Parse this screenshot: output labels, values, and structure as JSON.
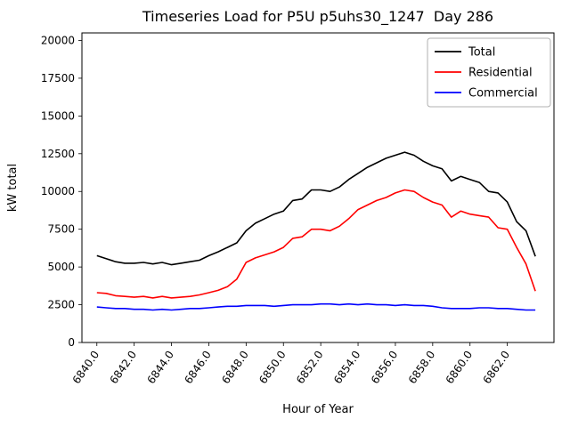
{
  "figure": {
    "title": "Timeseries Load for P5U p5uhs30_1247  Day 286",
    "xlabel": "Hour of Year",
    "ylabel": "kW total"
  },
  "chart_data": {
    "type": "line",
    "title": "Timeseries Load for P5U p5uhs30_1247  Day 286",
    "xlabel": "Hour of Year",
    "ylabel": "kW total",
    "xlim": [
      6839.2,
      6864.5
    ],
    "ylim": [
      0,
      20500
    ],
    "grid": false,
    "legend_position": "upper right",
    "y_ticks": [
      0,
      2500,
      5000,
      7500,
      10000,
      12500,
      15000,
      17500,
      20000
    ],
    "y_tick_labels": [
      "0",
      "2500",
      "5000",
      "7500",
      "10000",
      "12500",
      "15000",
      "17500",
      "20000"
    ],
    "x_ticks": [
      6840,
      6842,
      6844,
      6846,
      6848,
      6850,
      6852,
      6854,
      6856,
      6858,
      6860,
      6862
    ],
    "x_tick_labels": [
      "6840.0",
      "6842.0",
      "6844.0",
      "6846.0",
      "6848.0",
      "6850.0",
      "6852.0",
      "6854.0",
      "6856.0",
      "6858.0",
      "6860.0",
      "6862.0"
    ],
    "x": [
      6840,
      6840.5,
      6841,
      6841.5,
      6842,
      6842.5,
      6843,
      6843.5,
      6844,
      6844.5,
      6845,
      6845.5,
      6846,
      6846.5,
      6847,
      6847.5,
      6848,
      6848.5,
      6849,
      6849.5,
      6850,
      6850.5,
      6851,
      6851.5,
      6852,
      6852.5,
      6853,
      6853.5,
      6854,
      6854.5,
      6855,
      6855.5,
      6856,
      6856.5,
      6857,
      6857.5,
      6858,
      6858.5,
      6859,
      6859.5,
      6860,
      6860.5,
      6861,
      6861.5,
      6862,
      6862.5,
      6863,
      6863.5
    ],
    "series": [
      {
        "name": "Total",
        "color": "#000000",
        "values": [
          5750,
          5550,
          5350,
          5250,
          5250,
          5300,
          5200,
          5300,
          5150,
          5250,
          5350,
          5450,
          5750,
          6000,
          6300,
          6600,
          7400,
          7900,
          8200,
          8500,
          8700,
          9400,
          9500,
          10100,
          10100,
          10000,
          10300,
          10800,
          11200,
          11600,
          11900,
          12200,
          12400,
          12600,
          12400,
          12000,
          11700,
          11500,
          10700,
          11000,
          10800,
          10600,
          10000,
          9900,
          9300,
          8000,
          7400,
          5700
        ]
      },
      {
        "name": "Residential",
        "color": "#ff0000",
        "values": [
          3300,
          3250,
          3100,
          3050,
          3000,
          3050,
          2950,
          3050,
          2950,
          3000,
          3050,
          3150,
          3300,
          3450,
          3700,
          4200,
          5300,
          5600,
          5800,
          6000,
          6300,
          6900,
          7000,
          7500,
          7500,
          7400,
          7700,
          8200,
          8800,
          9100,
          9400,
          9600,
          9900,
          10100,
          10000,
          9600,
          9300,
          9100,
          8300,
          8700,
          8500,
          8400,
          8300,
          7600,
          7500,
          6300,
          5200,
          3400
        ]
      },
      {
        "name": "Commercial",
        "color": "#0000ff",
        "values": [
          2350,
          2300,
          2250,
          2250,
          2200,
          2200,
          2150,
          2200,
          2150,
          2200,
          2250,
          2250,
          2300,
          2350,
          2400,
          2400,
          2450,
          2450,
          2450,
          2400,
          2450,
          2500,
          2500,
          2500,
          2550,
          2550,
          2500,
          2550,
          2500,
          2550,
          2500,
          2500,
          2450,
          2500,
          2450,
          2450,
          2400,
          2300,
          2250,
          2250,
          2250,
          2300,
          2300,
          2250,
          2250,
          2200,
          2150,
          2150
        ]
      }
    ]
  }
}
